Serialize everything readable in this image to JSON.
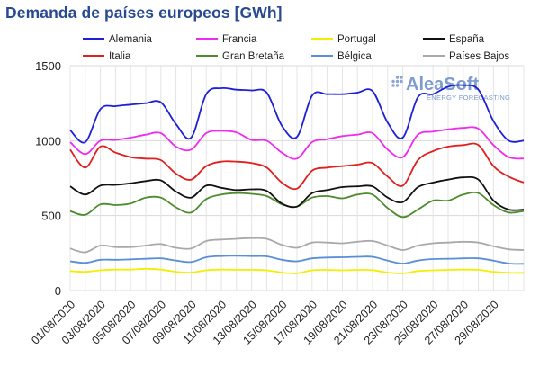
{
  "header": {
    "title": "Demanda de países europeos [GWh]"
  },
  "watermark": {
    "brand": "AleaSoft",
    "tagline": "ENERGY FORECASTING"
  },
  "chart_data": {
    "type": "line",
    "title": "Demanda de países europeos [GWh]",
    "xlabel": "",
    "ylabel": "",
    "ylim": [
      0,
      1500
    ],
    "yticks": [
      0,
      500,
      1000,
      1500
    ],
    "grid": true,
    "legend_position": "top",
    "x": [
      "01/08/2020",
      "02/08/2020",
      "03/08/2020",
      "04/08/2020",
      "05/08/2020",
      "06/08/2020",
      "07/08/2020",
      "08/08/2020",
      "09/08/2020",
      "10/08/2020",
      "11/08/2020",
      "12/08/2020",
      "13/08/2020",
      "14/08/2020",
      "15/08/2020",
      "16/08/2020",
      "17/08/2020",
      "18/08/2020",
      "19/08/2020",
      "20/08/2020",
      "21/08/2020",
      "22/08/2020",
      "23/08/2020",
      "24/08/2020",
      "25/08/2020",
      "26/08/2020",
      "27/08/2020",
      "28/08/2020",
      "29/08/2020",
      "30/08/2020",
      "31/08/2020"
    ],
    "xtick_labels": [
      "01/08/2020",
      "03/08/2020",
      "05/08/2020",
      "07/08/2020",
      "09/08/2020",
      "11/08/2020",
      "13/08/2020",
      "15/08/2020",
      "17/08/2020",
      "19/08/2020",
      "21/08/2020",
      "23/08/2020",
      "25/08/2020",
      "27/08/2020",
      "29/08/2020"
    ],
    "series": [
      {
        "name": "Alemania",
        "color": "#1f1fd6",
        "values": [
          1070,
          990,
          1210,
          1230,
          1240,
          1250,
          1255,
          1110,
          1020,
          1310,
          1350,
          1340,
          1335,
          1320,
          1100,
          1025,
          1300,
          1310,
          1310,
          1320,
          1330,
          1120,
          1020,
          1290,
          1310,
          1360,
          1370,
          1340,
          1130,
          1000,
          1000
        ]
      },
      {
        "name": "Francia",
        "color": "#ee2cee",
        "values": [
          990,
          910,
          1000,
          1005,
          1020,
          1040,
          1050,
          960,
          940,
          1050,
          1065,
          1055,
          1005,
          1000,
          920,
          880,
          990,
          1010,
          1030,
          1040,
          1050,
          940,
          890,
          1040,
          1060,
          1075,
          1085,
          1080,
          970,
          890,
          880
        ]
      },
      {
        "name": "Portugal",
        "color": "#f0f000",
        "values": [
          130,
          125,
          135,
          140,
          140,
          145,
          140,
          125,
          120,
          135,
          140,
          138,
          138,
          135,
          120,
          115,
          135,
          138,
          135,
          138,
          136,
          120,
          115,
          130,
          135,
          138,
          140,
          138,
          125,
          118,
          118
        ]
      },
      {
        "name": "España",
        "color": "#111111",
        "values": [
          695,
          640,
          700,
          705,
          715,
          730,
          735,
          660,
          620,
          700,
          685,
          670,
          675,
          665,
          580,
          560,
          650,
          670,
          690,
          695,
          695,
          620,
          590,
          690,
          720,
          740,
          755,
          740,
          600,
          540,
          540
        ]
      },
      {
        "name": "Italia",
        "color": "#e01f1f",
        "values": [
          940,
          820,
          960,
          920,
          890,
          880,
          870,
          780,
          740,
          830,
          860,
          860,
          850,
          820,
          720,
          680,
          800,
          820,
          830,
          840,
          850,
          760,
          700,
          870,
          930,
          960,
          970,
          970,
          830,
          760,
          720
        ]
      },
      {
        "name": "Gran Bretaña",
        "color": "#4e8a2e",
        "values": [
          530,
          505,
          575,
          570,
          580,
          620,
          620,
          555,
          520,
          610,
          640,
          650,
          645,
          630,
          575,
          560,
          620,
          630,
          615,
          640,
          640,
          550,
          490,
          540,
          600,
          600,
          640,
          650,
          570,
          520,
          530
        ]
      },
      {
        "name": "Bélgica",
        "color": "#5a8fd6",
        "values": [
          195,
          185,
          205,
          205,
          208,
          212,
          215,
          200,
          190,
          222,
          230,
          232,
          230,
          228,
          205,
          195,
          215,
          220,
          222,
          225,
          225,
          200,
          180,
          200,
          210,
          212,
          215,
          215,
          200,
          180,
          178
        ]
      },
      {
        "name": "Países Bajos",
        "color": "#a9a9a9",
        "values": [
          280,
          255,
          300,
          290,
          290,
          300,
          310,
          285,
          280,
          330,
          340,
          345,
          350,
          345,
          305,
          285,
          320,
          320,
          315,
          325,
          330,
          300,
          270,
          300,
          315,
          320,
          325,
          320,
          295,
          275,
          270
        ]
      }
    ]
  }
}
